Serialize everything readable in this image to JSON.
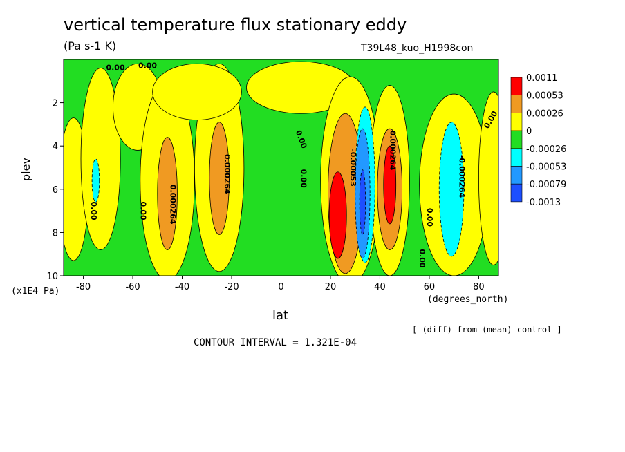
{
  "chart_data": {
    "type": "heatmap",
    "title": "vertical temperature flux stationary eddy",
    "subtitle": "(Pa s-1 K)",
    "run_label": "T39L48_kuo_H1998con",
    "xlabel": "lat",
    "x_units": "(degrees_north)",
    "ylabel": "plev",
    "y_units": "(x1E4 Pa)",
    "xlim": [
      -88,
      88
    ],
    "ylim": [
      0,
      10
    ],
    "y_inverted": true,
    "x_ticks": [
      -80,
      -60,
      -40,
      -20,
      0,
      20,
      40,
      60,
      80
    ],
    "y_ticks": [
      2,
      4,
      6,
      8,
      10
    ],
    "note": "[ (diff) from (mean) control ]",
    "contour_interval_text": "CONTOUR INTERVAL = 1.321E-04",
    "legend": {
      "placement": "right",
      "labels": [
        "0.0011",
        "0.00053",
        "0.00026",
        "0",
        "-0.00026",
        "-0.00053",
        "-0.00079",
        "-0.0013"
      ],
      "colors": [
        "#ff0000",
        "#f09a22",
        "#ffff00",
        "#22dd22",
        "#00ffff",
        "#2299ff",
        "#1d4fff"
      ]
    },
    "background_color": "#22dd22",
    "regions": [
      {
        "value": 0.0001,
        "color": "#ffff00",
        "cx": -84,
        "cy": 6.0,
        "rx": 6,
        "ry": 3.3
      },
      {
        "value": 0.0001,
        "color": "#ffff00",
        "cx": -73,
        "cy": 4.6,
        "rx": 8,
        "ry": 4.2
      },
      {
        "value": 0.0001,
        "color": "#ffff00",
        "cx": -58,
        "cy": 2.2,
        "rx": 10,
        "ry": 2.0
      },
      {
        "value": 0.0001,
        "color": "#ffff00",
        "cx": -46,
        "cy": 5.6,
        "rx": 11,
        "ry": 4.6
      },
      {
        "value": 0.0001,
        "color": "#ffff00",
        "cx": -25,
        "cy": 5.0,
        "rx": 10,
        "ry": 4.8
      },
      {
        "value": 0.0001,
        "color": "#ffff00",
        "cx": -34,
        "cy": 1.5,
        "rx": 18,
        "ry": 1.3
      },
      {
        "value": 0.0001,
        "color": "#ffff00",
        "cx": 8,
        "cy": 1.3,
        "rx": 22,
        "ry": 1.2
      },
      {
        "value": 0.0001,
        "color": "#ffff00",
        "cx": 28,
        "cy": 5.6,
        "rx": 12,
        "ry": 4.8
      },
      {
        "value": 0.0001,
        "color": "#ffff00",
        "cx": 44,
        "cy": 5.6,
        "rx": 8,
        "ry": 4.4
      },
      {
        "value": 0.0001,
        "color": "#ffff00",
        "cx": 70,
        "cy": 5.8,
        "rx": 14,
        "ry": 4.2
      },
      {
        "value": 0.0001,
        "color": "#ffff00",
        "cx": 86,
        "cy": 5.5,
        "rx": 6,
        "ry": 4.0
      },
      {
        "value": -0.0003,
        "color": "#00ffff",
        "cx": -75,
        "cy": 5.6,
        "rx": 1.5,
        "ry": 1.0
      },
      {
        "value": 0.0003,
        "color": "#f09a22",
        "cx": -46,
        "cy": 6.2,
        "rx": 4,
        "ry": 2.6
      },
      {
        "value": 0.0003,
        "color": "#f09a22",
        "cx": -25,
        "cy": 5.5,
        "rx": 4,
        "ry": 2.6
      },
      {
        "value": 0.0003,
        "color": "#f09a22",
        "cx": 26,
        "cy": 6.2,
        "rx": 7,
        "ry": 3.7
      },
      {
        "value": 0.0003,
        "color": "#f09a22",
        "cx": 44,
        "cy": 6.0,
        "rx": 5,
        "ry": 2.8
      },
      {
        "value": -0.0003,
        "color": "#00ffff",
        "cx": 34,
        "cy": 5.8,
        "rx": 4,
        "ry": 3.6
      },
      {
        "value": -0.0005,
        "color": "#2299ff",
        "cx": 33,
        "cy": 6.2,
        "rx": 3,
        "ry": 3.0
      },
      {
        "value": -0.0003,
        "color": "#00ffff",
        "cx": 69,
        "cy": 6.0,
        "rx": 5,
        "ry": 3.1
      },
      {
        "value": 0.0006,
        "color": "#ff0000",
        "cx": 23,
        "cy": 7.2,
        "rx": 3.5,
        "ry": 2.0
      },
      {
        "value": 0.0006,
        "color": "#ff0000",
        "cx": 44,
        "cy": 5.8,
        "rx": 2.5,
        "ry": 1.8
      },
      {
        "value": -0.0008,
        "color": "#1d4fff",
        "cx": 33,
        "cy": 6.6,
        "rx": 1.2,
        "ry": 1.5
      }
    ],
    "contour_labels": [
      {
        "text": "0.00",
        "lat": -67,
        "plev": 0.4,
        "angle": 0
      },
      {
        "text": "0.00",
        "lat": -54,
        "plev": 0.3,
        "angle": 0
      },
      {
        "text": "0.00",
        "lat": -76,
        "plev": 7.0,
        "angle": 90
      },
      {
        "text": "0.00",
        "lat": -56,
        "plev": 7.0,
        "angle": 90
      },
      {
        "text": "0.000264",
        "lat": -44,
        "plev": 6.7,
        "angle": 90
      },
      {
        "text": "0.000264",
        "lat": -22,
        "plev": 5.3,
        "angle": 90
      },
      {
        "text": "0.00",
        "lat": 8,
        "plev": 3.7,
        "angle": 70
      },
      {
        "text": "0.00",
        "lat": 9,
        "plev": 5.5,
        "angle": 90
      },
      {
        "text": "-0.00053",
        "lat": 29,
        "plev": 5.0,
        "angle": 90
      },
      {
        "text": "0.000264",
        "lat": 45,
        "plev": 4.2,
        "angle": 90
      },
      {
        "text": "0.00",
        "lat": 60,
        "plev": 7.3,
        "angle": 90
      },
      {
        "text": "0.00",
        "lat": 57,
        "plev": 9.2,
        "angle": 90
      },
      {
        "text": "-0.000264",
        "lat": 73,
        "plev": 5.4,
        "angle": 90
      },
      {
        "text": "0.00",
        "lat": 85,
        "plev": 2.8,
        "angle": -60
      }
    ]
  }
}
